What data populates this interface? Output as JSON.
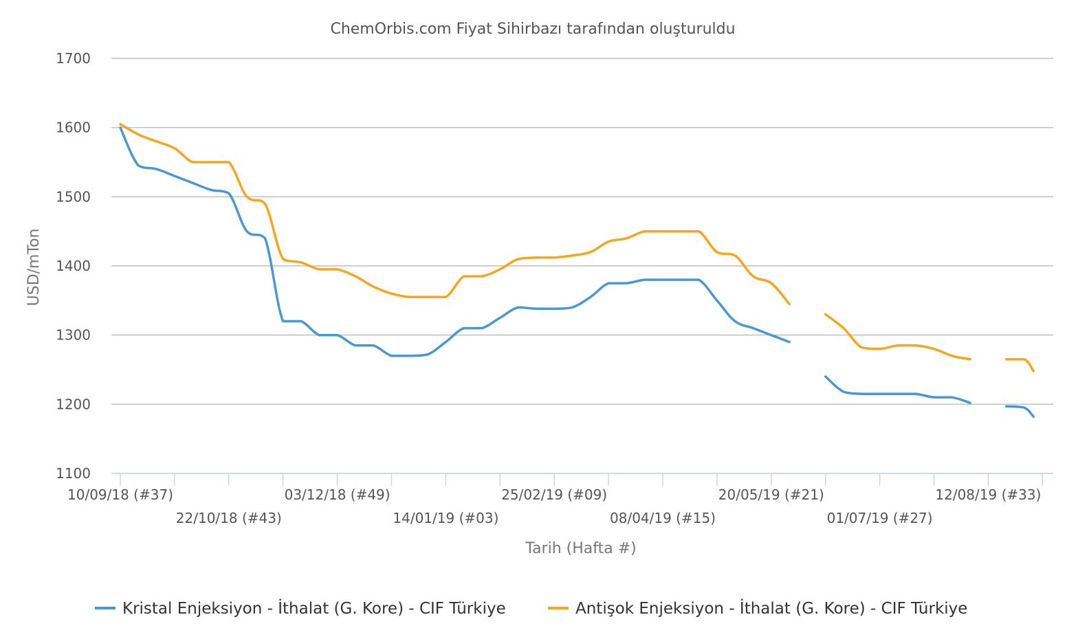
{
  "chart_data": {
    "type": "line",
    "title": "ChemOrbis.com Fiyat Sihirbazı tarafından oluşturuldu",
    "ylabel": "USD/mTon",
    "xlabel": "Tarih (Hafta #)",
    "ylim": [
      1100,
      1700
    ],
    "yticks": [
      "1700",
      "1600",
      "1500",
      "1400",
      "1300",
      "1200",
      "1100"
    ],
    "grid": true,
    "legend_position": "bottom-center",
    "xtick_labels": [
      {
        "week": 0,
        "label": "10/09/18 (#37)",
        "row": 0
      },
      {
        "week": 6,
        "label": "22/10/18 (#43)",
        "row": 1
      },
      {
        "week": 12,
        "label": "03/12/18 (#49)",
        "row": 0
      },
      {
        "week": 18,
        "label": "14/01/19 (#03)",
        "row": 1
      },
      {
        "week": 24,
        "label": "25/02/19 (#09)",
        "row": 0
      },
      {
        "week": 30,
        "label": "08/04/19 (#15)",
        "row": 1
      },
      {
        "week": 36,
        "label": "20/05/19 (#21)",
        "row": 0
      },
      {
        "week": 42,
        "label": "01/07/19 (#27)",
        "row": 1
      },
      {
        "week": 48,
        "label": "12/08/19 (#33)",
        "row": 0
      }
    ],
    "tick_weeks": [
      0,
      3,
      6,
      9,
      12,
      15,
      18,
      21,
      24,
      27,
      30,
      33,
      36,
      39,
      42,
      45,
      48,
      51
    ],
    "series": [
      {
        "name": "Kristal Enjeksiyon - İthalat (G. Kore) - CIF Türkiye",
        "color": "#4a98d3",
        "segments": [
          [
            [
              0,
              1600
            ],
            [
              1,
              1545
            ],
            [
              2,
              1540
            ],
            [
              3,
              1530
            ],
            [
              4,
              1520
            ],
            [
              5,
              1510
            ],
            [
              6,
              1505
            ],
            [
              7,
              1450
            ],
            [
              8,
              1440
            ],
            [
              9,
              1320
            ],
            [
              10,
              1320
            ],
            [
              11,
              1300
            ],
            [
              12,
              1300
            ],
            [
              13,
              1285
            ],
            [
              14,
              1285
            ],
            [
              15,
              1270
            ],
            [
              16,
              1270
            ],
            [
              17,
              1272
            ],
            [
              18,
              1290
            ],
            [
              19,
              1310
            ],
            [
              20,
              1310
            ],
            [
              21,
              1325
            ],
            [
              22,
              1340
            ],
            [
              23,
              1338
            ],
            [
              24,
              1338
            ],
            [
              25,
              1340
            ],
            [
              26,
              1355
            ],
            [
              27,
              1375
            ],
            [
              28,
              1375
            ],
            [
              29,
              1380
            ],
            [
              30,
              1380
            ],
            [
              31,
              1380
            ],
            [
              32,
              1380
            ],
            [
              33,
              1350
            ],
            [
              34,
              1320
            ],
            [
              35,
              1310
            ],
            [
              36,
              1300
            ],
            [
              37,
              1290
            ]
          ],
          [
            [
              39,
              1240
            ],
            [
              40,
              1218
            ],
            [
              41,
              1215
            ],
            [
              42,
              1215
            ],
            [
              43,
              1215
            ],
            [
              44,
              1215
            ],
            [
              45,
              1210
            ],
            [
              46,
              1210
            ],
            [
              47,
              1202
            ]
          ],
          [
            [
              49,
              1197
            ],
            [
              50,
              1195
            ],
            [
              50.5,
              1182
            ]
          ]
        ]
      },
      {
        "name": "Antişok Enjeksiyon - İthalat (G. Kore) - CIF Türkiye",
        "color": "#f5a61c",
        "segments": [
          [
            [
              0,
              1605
            ],
            [
              1,
              1590
            ],
            [
              2,
              1580
            ],
            [
              3,
              1570
            ],
            [
              4,
              1550
            ],
            [
              5,
              1550
            ],
            [
              6,
              1550
            ],
            [
              7,
              1500
            ],
            [
              8,
              1490
            ],
            [
              9,
              1410
            ],
            [
              10,
              1405
            ],
            [
              11,
              1395
            ],
            [
              12,
              1395
            ],
            [
              13,
              1385
            ],
            [
              14,
              1370
            ],
            [
              15,
              1360
            ],
            [
              16,
              1355
            ],
            [
              17,
              1355
            ],
            [
              18,
              1355
            ],
            [
              19,
              1385
            ],
            [
              20,
              1385
            ],
            [
              21,
              1395
            ],
            [
              22,
              1410
            ],
            [
              23,
              1412
            ],
            [
              24,
              1412
            ],
            [
              25,
              1415
            ],
            [
              26,
              1420
            ],
            [
              27,
              1435
            ],
            [
              28,
              1440
            ],
            [
              29,
              1450
            ],
            [
              30,
              1450
            ],
            [
              31,
              1450
            ],
            [
              32,
              1450
            ],
            [
              33,
              1420
            ],
            [
              34,
              1415
            ],
            [
              35,
              1385
            ],
            [
              36,
              1375
            ],
            [
              37,
              1345
            ]
          ],
          [
            [
              39,
              1330
            ],
            [
              40,
              1310
            ],
            [
              41,
              1282
            ],
            [
              42,
              1280
            ],
            [
              43,
              1285
            ],
            [
              44,
              1285
            ],
            [
              45,
              1280
            ],
            [
              46,
              1270
            ],
            [
              47,
              1265
            ]
          ],
          [
            [
              49,
              1265
            ],
            [
              50,
              1265
            ],
            [
              50.5,
              1248
            ]
          ]
        ]
      }
    ]
  }
}
